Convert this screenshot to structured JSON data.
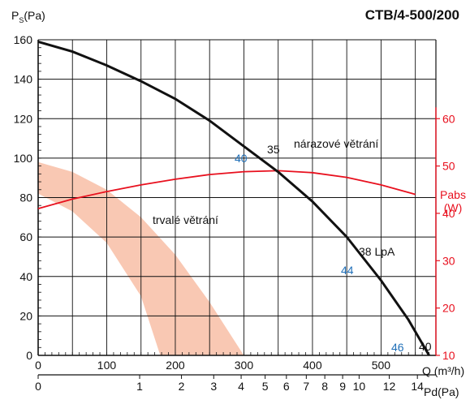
{
  "chart_data": {
    "type": "line",
    "title": "CTB/4-500/200",
    "colors": {
      "fan_curve": "#111111",
      "power_curve": "#e8101e",
      "continuous_band": "#f9c8b3",
      "grid": "#111111",
      "blue_labels": "#1f6fb8"
    },
    "y_axis": {
      "label_prefix": "P",
      "label_sub": "S",
      "label_suffix": "(Pa)",
      "range": [
        0,
        160
      ],
      "ticks": [
        0,
        20,
        40,
        60,
        80,
        100,
        120,
        140,
        160
      ],
      "minor_step": 4
    },
    "x_axis": {
      "label": "Q (m³/h)",
      "range": [
        0,
        580
      ],
      "ticks": [
        0,
        100,
        200,
        300,
        400,
        500
      ],
      "grid_step": 50,
      "minor_step": 10
    },
    "power_axis": {
      "label_line1": "Pabs",
      "label_line2": "(W)",
      "range": [
        10,
        60
      ],
      "ticks": [
        10,
        20,
        30,
        40,
        50,
        60
      ]
    },
    "pd_axis": {
      "label": "Pd(Pa)",
      "ticks": [
        {
          "label": "0",
          "q": 0
        },
        {
          "label": "1",
          "q": 148
        },
        {
          "label": "2",
          "q": 209
        },
        {
          "label": "3",
          "q": 256
        },
        {
          "label": "4",
          "q": 296
        },
        {
          "label": "5",
          "q": 331
        },
        {
          "label": "6",
          "q": 362
        },
        {
          "label": "7",
          "q": 391
        },
        {
          "label": "8",
          "q": 418
        },
        {
          "label": "9",
          "q": 444
        },
        {
          "label": "10",
          "q": 468
        },
        {
          "label": "12",
          "q": 512
        },
        {
          "label": "14",
          "q": 553
        }
      ]
    },
    "series": [
      {
        "key": "fan",
        "x": [
          0,
          50,
          100,
          150,
          200,
          250,
          300,
          350,
          400,
          450,
          500,
          540,
          570
        ],
        "y": [
          159,
          154,
          147,
          139,
          130,
          119,
          106,
          93,
          78,
          60,
          38,
          18,
          0
        ]
      },
      {
        "key": "power",
        "x": [
          0,
          50,
          100,
          150,
          200,
          250,
          300,
          350,
          400,
          450,
          500,
          550
        ],
        "y": [
          41,
          43,
          44.6,
          46,
          47.2,
          48.2,
          48.8,
          49,
          48.6,
          47.6,
          46,
          44
        ]
      }
    ],
    "band": {
      "upper": {
        "x": [
          0,
          50,
          100,
          150,
          200,
          250,
          300
        ],
        "y": [
          98,
          93,
          84,
          70,
          51,
          27,
          0
        ]
      },
      "lower": {
        "x": [
          0,
          50,
          100,
          150,
          178
        ],
        "y": [
          82,
          73,
          57,
          30,
          0
        ]
      }
    },
    "annotations": {
      "boost_label": "nárazové větrání",
      "continuous_label": "trvalé větrání",
      "noise_unit_label": "38 LpA",
      "fan_labels": [
        "35",
        "40"
      ],
      "power_labels": [
        "40",
        "44",
        "46"
      ]
    }
  }
}
